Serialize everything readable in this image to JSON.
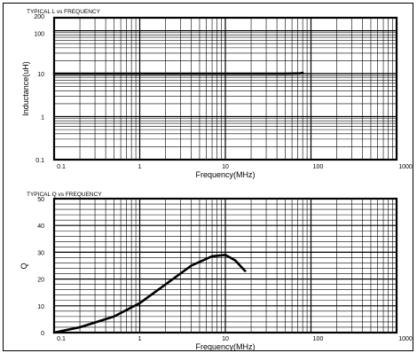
{
  "chart_data": [
    {
      "type": "line",
      "title": "TYPICAL L vs FREQUENCY",
      "xlabel": "Frequency(MHz)",
      "ylabel": "Inductance(uH)",
      "xscale": "log",
      "yscale": "log",
      "xlim": [
        0.1,
        1000
      ],
      "ylim": [
        0.1,
        200
      ],
      "x_tick_labels": [
        "0.1",
        "1",
        "10",
        "100",
        "1000"
      ],
      "y_tick_labels": [
        "0.1",
        "1",
        "10",
        "100",
        "200"
      ],
      "grid": true,
      "series": [
        {
          "x": [
            0.1,
            1,
            10,
            50,
            75,
            80
          ],
          "y": [
            10,
            10,
            10,
            10,
            10.2,
            10.5
          ]
        }
      ]
    },
    {
      "type": "line",
      "title": "TYPICAL Q vs FREQUENCY",
      "xlabel": "Frequency(MHz)",
      "ylabel": "Q",
      "xscale": "log",
      "yscale": "linear",
      "xlim": [
        0.1,
        1000
      ],
      "ylim": [
        0,
        50
      ],
      "x_tick_labels": [
        "0.1",
        "1",
        "10",
        "100",
        "1000"
      ],
      "y_tick_labels": [
        "0",
        "10",
        "20",
        "30",
        "40",
        "50"
      ],
      "grid": true,
      "series": [
        {
          "x": [
            0.1,
            0.2,
            0.5,
            1,
            2,
            4,
            7,
            10,
            13,
            17
          ],
          "y": [
            0,
            2,
            6,
            11,
            18,
            25,
            28.5,
            29,
            27,
            23
          ]
        }
      ]
    }
  ]
}
